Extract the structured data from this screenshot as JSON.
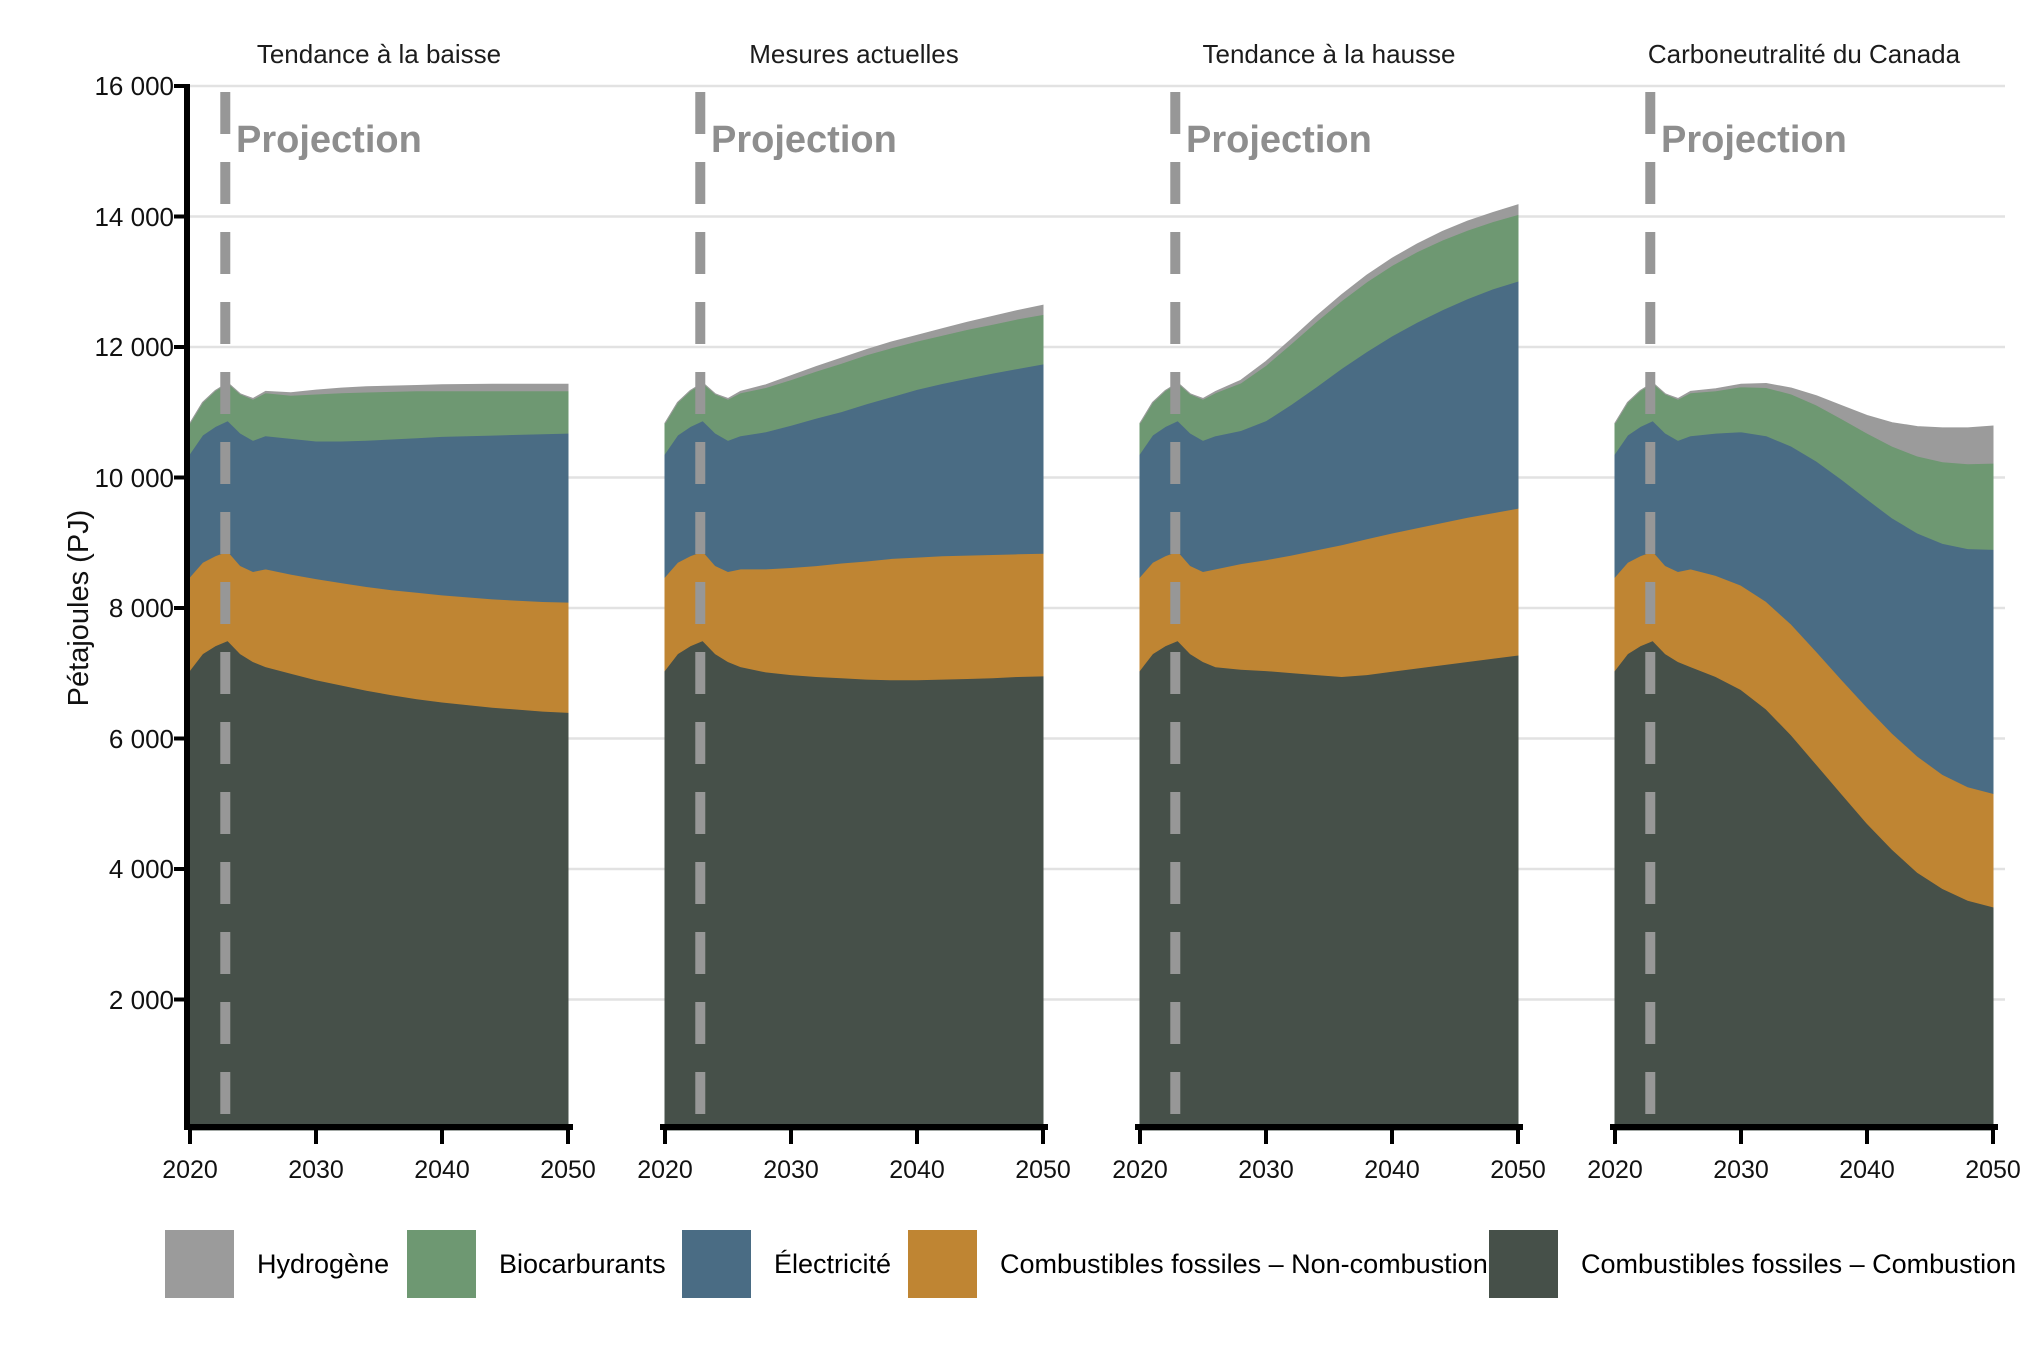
{
  "figure": {
    "background": "#ffffff"
  },
  "y_axis": {
    "title": "Pétajoules (PJ)",
    "ticks": [
      "16 000",
      "14 000",
      "12 000",
      "10 000",
      "8 000",
      "6 000",
      "4 000",
      "2 000"
    ],
    "tick_values": [
      16000,
      14000,
      12000,
      10000,
      8000,
      6000,
      4000,
      2000
    ]
  },
  "x_axis": {
    "ticks": [
      "2020",
      "2030",
      "2040",
      "2050"
    ],
    "tick_values": [
      2020,
      2030,
      2040,
      2050
    ]
  },
  "projection": {
    "label": "Projection",
    "start_year": 2023
  },
  "colors": {
    "hydrogen": "#9b9b9b",
    "biofuels": "#6e9872",
    "electricity": "#4a6c84",
    "fossil_non_combustion": "#bf8533",
    "fossil_combustion": "#465049",
    "gridline": "#e2e2e2",
    "dashed_line": "#979797",
    "axis": "#000000"
  },
  "legend": [
    {
      "label": "Hydrogène",
      "color": "#9b9b9b"
    },
    {
      "label": "Biocarburants",
      "color": "#6e9872"
    },
    {
      "label": "Électricité",
      "color": "#4a6c84"
    },
    {
      "label": "Combustibles fossiles – Non-combustion",
      "color": "#bf8533"
    },
    {
      "label": "Combustibles fossiles – Combustion",
      "color": "#465049"
    }
  ],
  "chart_data": {
    "type": "area",
    "stacked": true,
    "ylabel": "Pétajoules (PJ)",
    "ylim": [
      0,
      16000
    ],
    "xlim": [
      2020,
      2050
    ],
    "grid": true,
    "legend_position": "bottom",
    "x": [
      2020,
      2021,
      2022,
      2023,
      2024,
      2025,
      2026,
      2028,
      2030,
      2032,
      2034,
      2036,
      2038,
      2040,
      2042,
      2044,
      2046,
      2048,
      2050
    ],
    "series_order": [
      "Combustibles fossiles – Combustion",
      "Combustibles fossiles – Non-combustion",
      "Électricité",
      "Biocarburants",
      "Hydrogène"
    ],
    "series_colors": [
      "#465049",
      "#bf8533",
      "#4a6c84",
      "#6e9872",
      "#9b9b9b"
    ],
    "annotations": {
      "projection_label": "Projection",
      "projection_year": 2023
    },
    "panels": [
      {
        "title": "Tendance à la baisse",
        "series": [
          {
            "name": "Combustibles fossiles – Combustion",
            "values": [
              7050,
              7300,
              7420,
              7500,
              7300,
              7180,
              7100,
              7000,
              6900,
              6820,
              6740,
              6670,
              6610,
              6560,
              6520,
              6480,
              6450,
              6420,
              6400
            ]
          },
          {
            "name": "Combustibles fossiles – Non-combustion",
            "values": [
              1430,
              1400,
              1380,
              1370,
              1350,
              1380,
              1500,
              1520,
              1550,
              1570,
              1590,
              1610,
              1630,
              1640,
              1650,
              1660,
              1670,
              1680,
              1690
            ]
          },
          {
            "name": "Électricité",
            "values": [
              1890,
              1950,
              1980,
              2000,
              2030,
              2010,
              2040,
              2080,
              2110,
              2170,
              2240,
              2310,
              2370,
              2430,
              2470,
              2510,
              2540,
              2570,
              2590
            ]
          },
          {
            "name": "Biocarburants",
            "values": [
              460,
              500,
              550,
              580,
              600,
              630,
              660,
              660,
              720,
              740,
              740,
              730,
              720,
              700,
              690,
              680,
              670,
              660,
              650
            ]
          },
          {
            "name": "Hydrogène",
            "values": [
              0,
              0,
              0,
              0,
              0,
              10,
              20,
              40,
              60,
              70,
              80,
              80,
              80,
              90,
              95,
              100,
              100,
              100,
              100
            ]
          }
        ]
      },
      {
        "title": "Mesures actuelles",
        "series": [
          {
            "name": "Combustibles fossiles – Combustion",
            "values": [
              7050,
              7300,
              7420,
              7500,
              7300,
              7180,
              7100,
              7020,
              6980,
              6950,
              6930,
              6910,
              6900,
              6900,
              6910,
              6920,
              6930,
              6950,
              6960
            ]
          },
          {
            "name": "Combustibles fossiles – Non-combustion",
            "values": [
              1430,
              1400,
              1380,
              1370,
              1350,
              1380,
              1500,
              1580,
              1640,
              1700,
              1760,
              1810,
              1860,
              1880,
              1890,
              1890,
              1890,
              1880,
              1880
            ]
          },
          {
            "name": "Électricité",
            "values": [
              1890,
              1950,
              1980,
              2000,
              2030,
              2010,
              2040,
              2100,
              2180,
              2260,
              2320,
              2410,
              2480,
              2570,
              2640,
              2710,
              2780,
              2840,
              2900
            ]
          },
          {
            "name": "Biocarburants",
            "values": [
              460,
              500,
              550,
              580,
              600,
              630,
              660,
              680,
              700,
              720,
              740,
              750,
              750,
              740,
              740,
              750,
              750,
              760,
              760
            ]
          },
          {
            "name": "Hydrogène",
            "values": [
              0,
              0,
              0,
              0,
              0,
              10,
              20,
              40,
              60,
              70,
              80,
              80,
              90,
              90,
              100,
              110,
              120,
              130,
              140
            ]
          }
        ]
      },
      {
        "title": "Tendance à la hausse",
        "series": [
          {
            "name": "Combustibles fossiles – Combustion",
            "values": [
              7050,
              7300,
              7420,
              7500,
              7300,
              7180,
              7100,
              7060,
              7040,
              7010,
              6980,
              6950,
              6980,
              7030,
              7080,
              7130,
              7180,
              7230,
              7280
            ]
          },
          {
            "name": "Combustibles fossiles – Non-combustion",
            "values": [
              1430,
              1400,
              1380,
              1370,
              1350,
              1380,
              1500,
              1620,
              1700,
              1800,
              1910,
              2020,
              2080,
              2120,
              2150,
              2180,
              2210,
              2230,
              2250
            ]
          },
          {
            "name": "Électricité",
            "values": [
              1890,
              1950,
              1980,
              2000,
              2030,
              2010,
              2040,
              2040,
              2130,
              2310,
              2500,
              2700,
              2870,
              3020,
              3150,
              3260,
              3350,
              3430,
              3480
            ]
          },
          {
            "name": "Biocarburants",
            "values": [
              460,
              500,
              550,
              580,
              600,
              630,
              660,
              730,
              850,
              930,
              1000,
              1040,
              1070,
              1080,
              1080,
              1070,
              1050,
              1030,
              1020
            ]
          },
          {
            "name": "Hydrogène",
            "values": [
              0,
              0,
              0,
              0,
              0,
              10,
              20,
              40,
              60,
              70,
              80,
              90,
              100,
              110,
              120,
              130,
              140,
              140,
              150
            ]
          }
        ]
      },
      {
        "title": "Carboneutralité du Canada",
        "series": [
          {
            "name": "Combustibles fossiles – Combustion",
            "values": [
              7050,
              7300,
              7420,
              7500,
              7300,
              7180,
              7100,
              6950,
              6750,
              6450,
              6050,
              5600,
              5150,
              4700,
              4300,
              3950,
              3700,
              3520,
              3420
            ]
          },
          {
            "name": "Combustibles fossiles – Non-combustion",
            "values": [
              1430,
              1400,
              1380,
              1370,
              1350,
              1380,
              1500,
              1550,
              1600,
              1650,
              1700,
              1730,
              1750,
              1780,
              1780,
              1780,
              1750,
              1740,
              1740
            ]
          },
          {
            "name": "Électricité",
            "values": [
              1890,
              1950,
              1980,
              2000,
              2030,
              2010,
              2040,
              2180,
              2350,
              2540,
              2730,
              2920,
              3070,
              3190,
              3300,
              3420,
              3540,
              3650,
              3740
            ]
          },
          {
            "name": "Biocarburants",
            "values": [
              460,
              500,
              550,
              580,
              600,
              630,
              660,
              650,
              690,
              740,
              800,
              860,
              930,
              1010,
              1100,
              1180,
              1250,
              1300,
              1320
            ]
          },
          {
            "name": "Hydrogène",
            "values": [
              0,
              0,
              0,
              0,
              0,
              10,
              20,
              30,
              40,
              60,
              90,
              140,
              200,
              270,
              360,
              450,
              520,
              550,
              570
            ]
          }
        ]
      }
    ]
  }
}
